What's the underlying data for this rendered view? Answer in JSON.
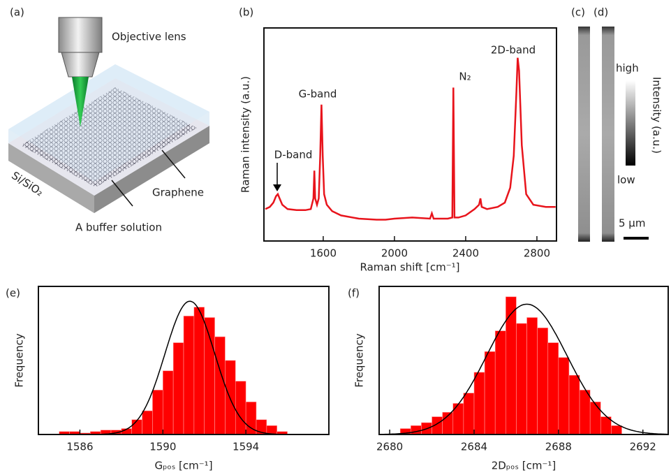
{
  "panel_a": {
    "label": "(a)",
    "objective": "Objective lens",
    "substrate": "Si/SiO₂",
    "graphene": "Graphene",
    "solution": "A buffer solution"
  },
  "chart_data": [
    {
      "type": "line",
      "label": "(b)",
      "x_label": "Raman shift [cm⁻¹]",
      "y_label": "Raman intensity (a.u.)",
      "x": [
        1275,
        1300,
        1320,
        1335,
        1345,
        1355,
        1370,
        1400,
        1450,
        1500,
        1530,
        1545,
        1550,
        1555,
        1565,
        1575,
        1583,
        1590,
        1597,
        1605,
        1620,
        1650,
        1700,
        1800,
        1900,
        1950,
        2000,
        2100,
        2200,
        2210,
        2220,
        2300,
        2325,
        2331,
        2337,
        2360,
        2400,
        2450,
        2475,
        2483,
        2490,
        2520,
        2580,
        2620,
        2650,
        2670,
        2685,
        2692,
        2700,
        2715,
        2740,
        2780,
        2850,
        2905
      ],
      "series": [
        {
          "color": "#e8141c",
          "values": [
            0.15,
            0.16,
            0.18,
            0.21,
            0.22,
            0.2,
            0.17,
            0.15,
            0.145,
            0.145,
            0.15,
            0.2,
            0.33,
            0.2,
            0.17,
            0.2,
            0.4,
            0.64,
            0.4,
            0.22,
            0.17,
            0.14,
            0.12,
            0.105,
            0.1,
            0.1,
            0.105,
            0.11,
            0.105,
            0.13,
            0.105,
            0.105,
            0.11,
            0.72,
            0.11,
            0.11,
            0.12,
            0.15,
            0.17,
            0.2,
            0.16,
            0.15,
            0.16,
            0.18,
            0.25,
            0.4,
            0.7,
            0.86,
            0.8,
            0.45,
            0.22,
            0.17,
            0.16,
            0.16
          ]
        }
      ],
      "xlim": [
        1267,
        2910
      ],
      "ylim": [
        0,
        1
      ],
      "xticks": [
        1600,
        2000,
        2400,
        2800
      ],
      "annotations": [
        "D-band",
        "G-band",
        "N₂",
        "2D-band"
      ]
    },
    {
      "type": "histogram",
      "label": "(e)",
      "x_label": "Gₚₒₛ [cm⁻¹]",
      "y_label": "Frequency",
      "bins": [
        1585,
        1585.5,
        1586,
        1586.5,
        1587,
        1587.5,
        1588,
        1588.5,
        1589,
        1589.5,
        1590,
        1590.5,
        1591,
        1591.5,
        1592,
        1592.5,
        1593,
        1593.5,
        1594,
        1594.5,
        1595,
        1595.5,
        1596
      ],
      "values": [
        2,
        2,
        1,
        2,
        3,
        3,
        4,
        10,
        16,
        30,
        43,
        62,
        80,
        86,
        79,
        66,
        50,
        36,
        22,
        10,
        6,
        2
      ],
      "color": "#ff0000",
      "fit": {
        "center": 1591.3,
        "width": 1.2,
        "height": 90,
        "color": "#000000"
      },
      "xlim": [
        1584,
        1598
      ],
      "ylim": [
        0,
        100
      ],
      "xticks": [
        1586,
        1590,
        1594
      ]
    },
    {
      "type": "histogram",
      "label": "(f)",
      "x_label": "2Dₚₒₛ [cm⁻¹]",
      "y_label": "Frequency",
      "bins": [
        2680.5,
        2681,
        2681.5,
        2682,
        2682.5,
        2683,
        2683.5,
        2684,
        2684.5,
        2685,
        2685.5,
        2686,
        2686.5,
        2687,
        2687.5,
        2688,
        2688.5,
        2689,
        2689.5,
        2690,
        2690.5,
        2691
      ],
      "values": [
        4,
        6,
        8,
        12,
        15,
        21,
        28,
        42,
        56,
        70,
        93,
        75,
        79,
        72,
        62,
        52,
        40,
        30,
        22,
        12,
        6
      ],
      "color": "#ff0000",
      "fit": {
        "center": 2686.5,
        "width": 1.9,
        "height": 88,
        "color": "#000000"
      },
      "xlim": [
        2679.5,
        2693.2
      ],
      "ylim": [
        0,
        100
      ],
      "xticks": [
        2680,
        2684,
        2688,
        2692
      ]
    }
  ],
  "panel_cd": {
    "labels": [
      "(c)",
      "(d)"
    ],
    "high": "high",
    "low": "low",
    "colorbar_label": "Intensity (a.u.)",
    "scale_bar": "5 µm"
  }
}
